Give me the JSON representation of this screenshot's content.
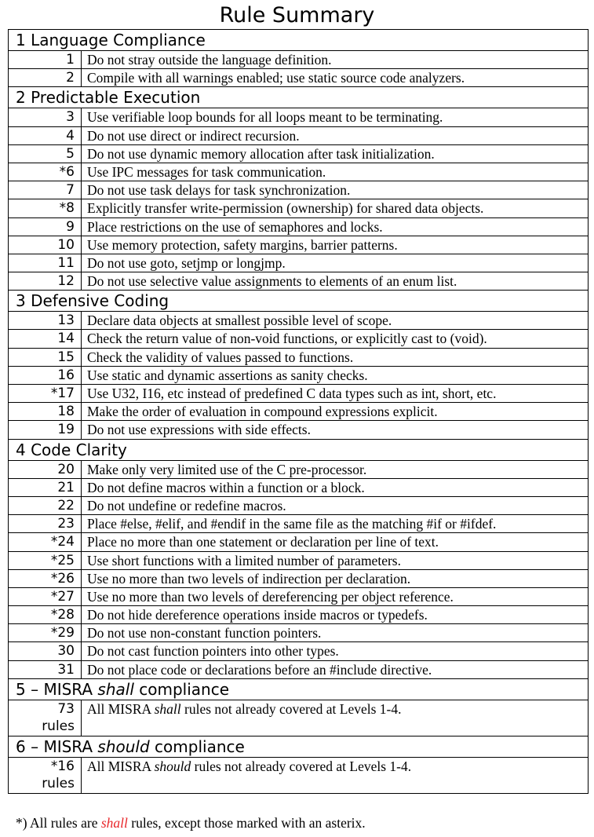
{
  "title": "Rule Summary",
  "sections": [
    {
      "heading": [
        "1 Language Compliance"
      ],
      "rules": [
        {
          "num": "1",
          "text": [
            "Do not stray outside the language definition."
          ]
        },
        {
          "num": "2",
          "text": [
            "Compile with all warnings enabled; use static source code analyzers."
          ]
        }
      ]
    },
    {
      "heading": [
        "2 Predictable Execution"
      ],
      "rules": [
        {
          "num": "3",
          "text": [
            "Use verifiable loop bounds for all loops meant to be terminating."
          ]
        },
        {
          "num": "4",
          "text": [
            "Do not use direct or indirect recursion."
          ]
        },
        {
          "num": "5",
          "text": [
            "Do not use dynamic memory allocation after task initialization."
          ]
        },
        {
          "num": "*6",
          "text": [
            "Use IPC messages for task communication."
          ]
        },
        {
          "num": "7",
          "text": [
            "Do not use task delays for task synchronization."
          ]
        },
        {
          "num": "*8",
          "text": [
            "Explicitly transfer write-permission (ownership) for shared data objects."
          ]
        },
        {
          "num": "9",
          "text": [
            "Place restrictions on the use of semaphores and locks."
          ]
        },
        {
          "num": "10",
          "text": [
            "Use memory protection, safety margins, barrier patterns."
          ]
        },
        {
          "num": "11",
          "text": [
            "Do not use goto, setjmp or longjmp."
          ]
        },
        {
          "num": "12",
          "text": [
            "Do not use selective value assignments to elements of an enum list."
          ]
        }
      ]
    },
    {
      "heading": [
        "3 Defensive Coding"
      ],
      "rules": [
        {
          "num": "13",
          "text": [
            "Declare data objects at smallest possible level of scope."
          ]
        },
        {
          "num": "14",
          "text": [
            "Check the return value of non-void functions, or explicitly cast to (void)."
          ]
        },
        {
          "num": "15",
          "text": [
            "Check the validity of values passed to functions."
          ]
        },
        {
          "num": "16",
          "text": [
            "Use static and dynamic assertions as sanity checks."
          ]
        },
        {
          "num": "*17",
          "text": [
            "Use U32, I16, etc instead of predefined C data types such as int, short, etc."
          ]
        },
        {
          "num": "18",
          "text": [
            "Make the order of evaluation in compound expressions explicit."
          ]
        },
        {
          "num": "19",
          "text": [
            "Do not use expressions with side effects."
          ]
        }
      ]
    },
    {
      "heading": [
        "4 Code Clarity"
      ],
      "rules": [
        {
          "num": "20",
          "text": [
            "Make only very limited use of the C pre-processor."
          ]
        },
        {
          "num": "21",
          "text": [
            "Do not define macros within a function or a block."
          ]
        },
        {
          "num": "22",
          "text": [
            "Do not undefine or redefine macros."
          ]
        },
        {
          "num": "23",
          "text": [
            "Place #else, #elif, and #endif in the same file as the matching #if or #ifdef."
          ]
        },
        {
          "num": "*24",
          "text": [
            "Place no more than one statement or declaration per line of text."
          ]
        },
        {
          "num": "*25",
          "text": [
            "Use short functions with a limited number of parameters."
          ]
        },
        {
          "num": "*26",
          "text": [
            "Use no more than two levels of indirection per declaration."
          ]
        },
        {
          "num": "*27",
          "text": [
            "Use no more than two levels of dereferencing per object reference."
          ]
        },
        {
          "num": "*28",
          "text": [
            "Do not hide dereference operations inside macros or typedefs."
          ]
        },
        {
          "num": "*29",
          "text": [
            "Do not use non-constant function pointers."
          ]
        },
        {
          "num": "30",
          "text": [
            "Do not cast function pointers into other types."
          ]
        },
        {
          "num": "31",
          "text": [
            "Do not place code or declarations before an #include directive."
          ]
        }
      ]
    },
    {
      "heading": [
        "5 – MISRA ",
        "shall",
        " compliance"
      ],
      "big": true,
      "rules": [
        {
          "num": "73",
          "num2": "rules",
          "text": [
            "All MISRA ",
            "shall",
            " rules not already covered at Levels 1-4."
          ]
        }
      ]
    },
    {
      "heading": [
        "6 – MISRA ",
        "should",
        " compliance"
      ],
      "big": true,
      "rules": [
        {
          "num": "*16",
          "num2": "rules",
          "text": [
            "All MISRA ",
            "should",
            " rules not already covered at Levels 1-4."
          ]
        }
      ]
    }
  ],
  "footnote": [
    "*) All rules are ",
    "shall",
    " rules, except those marked with an asterix."
  ],
  "colors": {
    "emphasis": "#e8262a"
  }
}
